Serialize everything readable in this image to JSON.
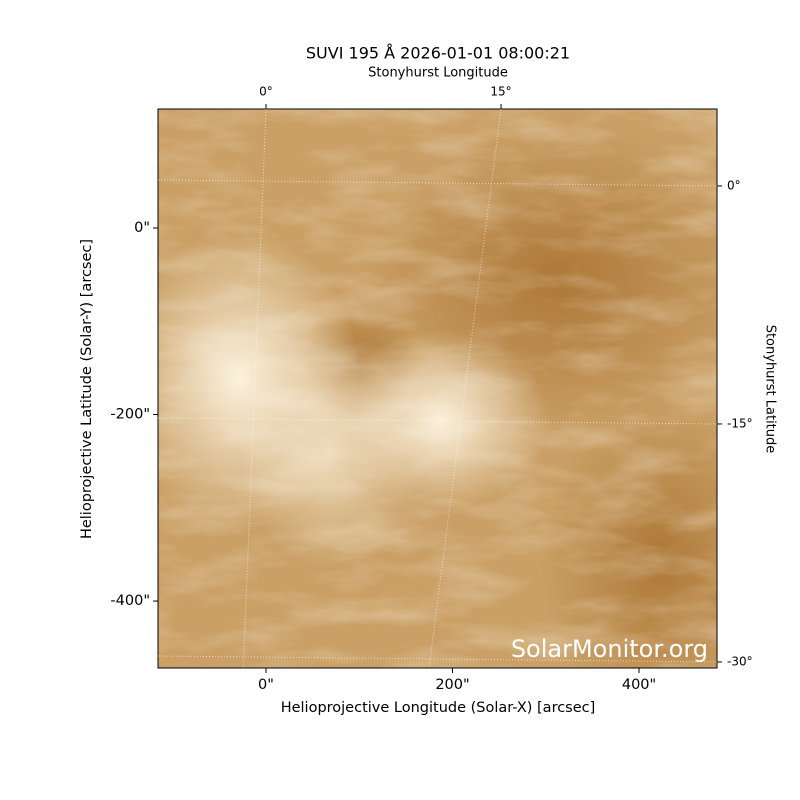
{
  "chart_data": {
    "type": "image",
    "title": "SUVI 195 Å 2026-01-01 08:00:21",
    "xlabel": "Helioprojective Longitude (Solar-X) [arcsec]",
    "ylabel": "Helioprojective Latitude (Solar-Y) [arcsec]",
    "x2label": "Stonyhurst Longitude",
    "y2label": "Stonyhurst Latitude",
    "watermark": "SolarMonitor.org",
    "xlim": [
      -115.8,
      483.6
    ],
    "xticks": [
      {
        "value": 0,
        "label": "0\""
      },
      {
        "value": 200,
        "label": "200\""
      },
      {
        "value": 400,
        "label": "400\""
      }
    ],
    "ylim": [
      -471.8,
      127.6
    ],
    "yticks": [
      {
        "value": 0,
        "label": "0\""
      },
      {
        "value": -200,
        "label": "-200\""
      },
      {
        "value": -400,
        "label": "-400\""
      }
    ],
    "x2lim": [
      -6.89,
      28.78
    ],
    "x2ticks": [
      {
        "value": 0,
        "label": "0°"
      },
      {
        "value": 15,
        "label": "15°"
      }
    ],
    "y2lim": [
      -30.38,
      4.85
    ],
    "y2ticks": [
      {
        "value": 0,
        "label": "0°"
      },
      {
        "value": -15,
        "label": "-15°"
      },
      {
        "value": -30,
        "label": "-30°"
      }
    ],
    "grid": true
  }
}
